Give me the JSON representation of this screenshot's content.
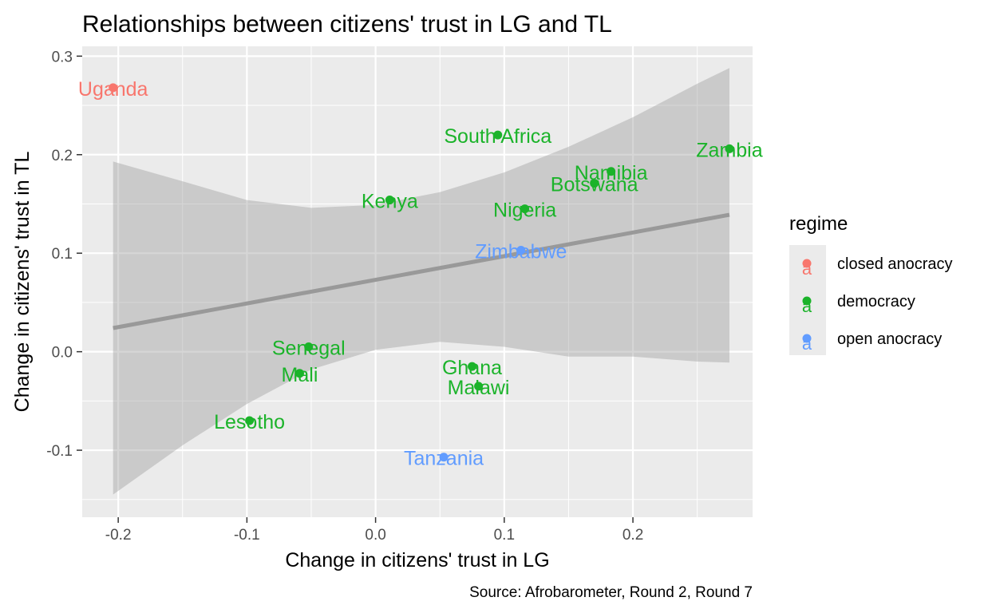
{
  "chart_data": {
    "type": "scatter",
    "title": "Relationships between citizens' trust in LG and TL",
    "caption": "Source: Afrobarometer, Round 2, Round 7",
    "xlabel": "Change in citizens' trust in LG",
    "ylabel": "Change in citizens' trust in TL",
    "xlim": [
      -0.228,
      0.293
    ],
    "ylim": [
      -0.168,
      0.31
    ],
    "xticks": [
      -0.2,
      -0.1,
      0.0,
      0.1,
      0.2
    ],
    "xtick_labels": [
      "-0.2",
      "-0.1",
      "0.0",
      "0.1",
      "0.2"
    ],
    "yticks": [
      -0.1,
      0.0,
      0.1,
      0.2,
      0.3
    ],
    "ytick_labels": [
      "-0.1",
      "0.0",
      "0.1",
      "0.2",
      "0.3"
    ],
    "grid": true,
    "legend": {
      "title": "regime",
      "position": "right",
      "glyph": "a",
      "entries": [
        {
          "key": "closed anocracy",
          "label": "closed anocracy",
          "color": "#F8766D"
        },
        {
          "key": "democracy",
          "label": "democracy",
          "color": "#1BB32A"
        },
        {
          "key": "open anocracy",
          "label": "open anocracy",
          "color": "#619CFF"
        }
      ]
    },
    "points": [
      {
        "label": "Uganda",
        "x": -0.204,
        "y": 0.268,
        "regime": "closed anocracy"
      },
      {
        "label": "South Africa",
        "x": 0.095,
        "y": 0.22,
        "regime": "democracy"
      },
      {
        "label": "Zambia",
        "x": 0.275,
        "y": 0.206,
        "regime": "democracy"
      },
      {
        "label": "Namibia",
        "x": 0.183,
        "y": 0.183,
        "regime": "democracy"
      },
      {
        "label": "Botswana",
        "x": 0.17,
        "y": 0.171,
        "regime": "democracy"
      },
      {
        "label": "Kenya",
        "x": 0.011,
        "y": 0.154,
        "regime": "democracy"
      },
      {
        "label": "Nigeria",
        "x": 0.116,
        "y": 0.145,
        "regime": "democracy"
      },
      {
        "label": "Zimbabwe",
        "x": 0.113,
        "y": 0.103,
        "regime": "open anocracy"
      },
      {
        "label": "Senegal",
        "x": -0.052,
        "y": 0.005,
        "regime": "democracy"
      },
      {
        "label": "Mali",
        "x": -0.059,
        "y": -0.022,
        "regime": "democracy"
      },
      {
        "label": "Ghana",
        "x": 0.075,
        "y": -0.015,
        "regime": "democracy"
      },
      {
        "label": "Malawi",
        "x": 0.08,
        "y": -0.035,
        "regime": "democracy"
      },
      {
        "label": "Lesotho",
        "x": -0.098,
        "y": -0.07,
        "regime": "democracy"
      },
      {
        "label": "Tanzania",
        "x": 0.053,
        "y": -0.107,
        "regime": "open anocracy"
      }
    ],
    "trend": {
      "type": "linear",
      "x": [
        -0.204,
        0.275
      ],
      "y": [
        0.024,
        0.139
      ],
      "color": "#999999",
      "ci_band": {
        "x": [
          -0.204,
          -0.15,
          -0.1,
          -0.05,
          0.0,
          0.05,
          0.1,
          0.15,
          0.2,
          0.25,
          0.275
        ],
        "lower": [
          -0.145,
          -0.095,
          -0.053,
          -0.018,
          0.002,
          0.01,
          0.005,
          -0.005,
          -0.005,
          -0.01,
          -0.011
        ],
        "upper": [
          0.193,
          0.173,
          0.154,
          0.146,
          0.149,
          0.162,
          0.182,
          0.208,
          0.238,
          0.272,
          0.288
        ]
      }
    }
  }
}
